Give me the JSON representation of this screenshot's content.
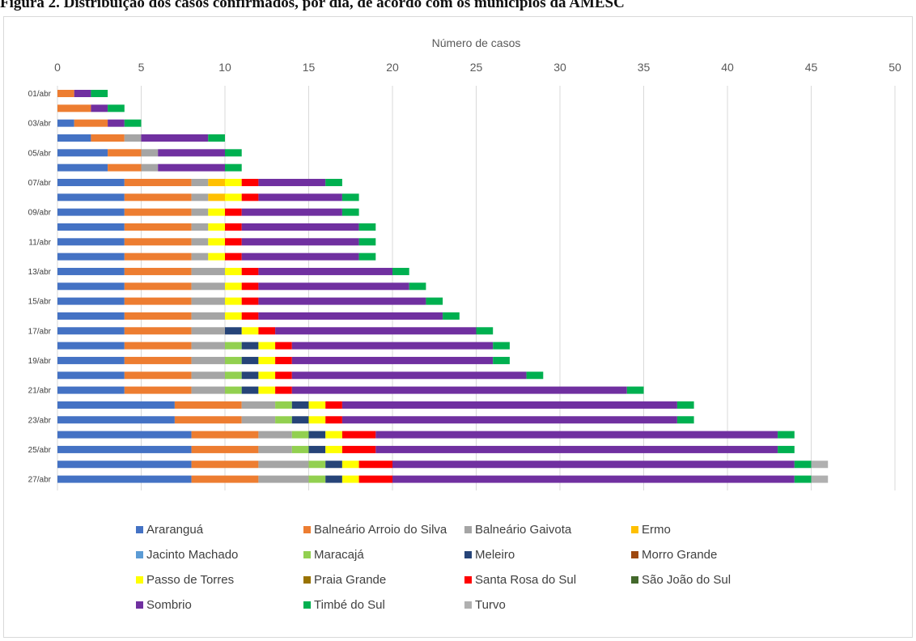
{
  "figure_title": "Figura 2. Distribuição dos casos confirmados, por dia, de acordo com os municípios da AMESC",
  "chart_data": {
    "type": "bar",
    "orientation": "horizontal",
    "stacked": true,
    "title": "",
    "xlabel": "Número de casos",
    "ylabel": "",
    "xlim": [
      0,
      50
    ],
    "x_ticks": [
      0,
      5,
      10,
      15,
      20,
      25,
      30,
      35,
      40,
      45,
      50
    ],
    "x_axis_position": "top",
    "grid": true,
    "legend_position": "bottom",
    "categories": [
      "01/abr",
      "02/abr",
      "03/abr",
      "04/abr",
      "05/abr",
      "06/abr",
      "07/abr",
      "08/abr",
      "09/abr",
      "10/abr",
      "11/abr",
      "12/abr",
      "13/abr",
      "14/abr",
      "15/abr",
      "16/abr",
      "17/abr",
      "18/abr",
      "19/abr",
      "20/abr",
      "21/abr",
      "22/abr",
      "23/abr",
      "24/abr",
      "25/abr",
      "26/abr",
      "27/abr"
    ],
    "category_labels": [
      "01/abr",
      "",
      "03/abr",
      "",
      "05/abr",
      "",
      "07/abr",
      "",
      "09/abr",
      "",
      "11/abr",
      "",
      "13/abr",
      "",
      "15/abr",
      "",
      "17/abr",
      "",
      "19/abr",
      "",
      "21/abr",
      "",
      "23/abr",
      "",
      "25/abr",
      "",
      "27/abr"
    ],
    "series": [
      {
        "name": "Araranguá",
        "color": "#4472c4",
        "values": [
          0,
          0,
          1,
          2,
          3,
          3,
          4,
          4,
          4,
          4,
          4,
          4,
          4,
          4,
          4,
          4,
          4,
          4,
          4,
          4,
          4,
          7,
          7,
          8,
          8,
          8,
          8
        ]
      },
      {
        "name": "Balneário Arroio do Silva",
        "color": "#ed7d31",
        "values": [
          1,
          2,
          2,
          2,
          2,
          2,
          4,
          4,
          4,
          4,
          4,
          4,
          4,
          4,
          4,
          4,
          4,
          4,
          4,
          4,
          4,
          4,
          4,
          4,
          4,
          4,
          4
        ]
      },
      {
        "name": "Balneário Gaivota",
        "color": "#a5a5a5",
        "values": [
          0,
          0,
          0,
          1,
          1,
          1,
          1,
          1,
          1,
          1,
          1,
          1,
          2,
          2,
          2,
          2,
          2,
          2,
          2,
          2,
          2,
          2,
          2,
          2,
          2,
          3,
          3
        ]
      },
      {
        "name": "Ermo",
        "color": "#ffc000",
        "values": [
          0,
          0,
          0,
          0,
          0,
          0,
          1,
          1,
          0,
          0,
          0,
          0,
          0,
          0,
          0,
          0,
          0,
          0,
          0,
          0,
          0,
          0,
          0,
          0,
          0,
          0,
          0
        ]
      },
      {
        "name": "Jacinto Machado",
        "color": "#5b9bd5",
        "values": [
          0,
          0,
          0,
          0,
          0,
          0,
          0,
          0,
          0,
          0,
          0,
          0,
          0,
          0,
          0,
          0,
          0,
          0,
          0,
          0,
          0,
          0,
          0,
          0,
          0,
          0,
          0
        ]
      },
      {
        "name": "Maracajá",
        "color": "#92d050",
        "values": [
          0,
          0,
          0,
          0,
          0,
          0,
          0,
          0,
          0,
          0,
          0,
          0,
          0,
          0,
          0,
          0,
          0,
          1,
          1,
          1,
          1,
          1,
          1,
          1,
          1,
          1,
          1
        ]
      },
      {
        "name": "Meleiro",
        "color": "#264478",
        "values": [
          0,
          0,
          0,
          0,
          0,
          0,
          0,
          0,
          0,
          0,
          0,
          0,
          0,
          0,
          0,
          0,
          1,
          1,
          1,
          1,
          1,
          1,
          1,
          1,
          1,
          1,
          1
        ]
      },
      {
        "name": "Morro Grande",
        "color": "#9e480e",
        "values": [
          0,
          0,
          0,
          0,
          0,
          0,
          0,
          0,
          0,
          0,
          0,
          0,
          0,
          0,
          0,
          0,
          0,
          0,
          0,
          0,
          0,
          0,
          0,
          0,
          0,
          0,
          0
        ]
      },
      {
        "name": "Passo de Torres",
        "color": "#ffff00",
        "values": [
          0,
          0,
          0,
          0,
          0,
          0,
          1,
          1,
          1,
          1,
          1,
          1,
          1,
          1,
          1,
          1,
          1,
          1,
          1,
          1,
          1,
          1,
          1,
          1,
          1,
          1,
          1
        ]
      },
      {
        "name": "Praia Grande",
        "color": "#997300",
        "values": [
          0,
          0,
          0,
          0,
          0,
          0,
          0,
          0,
          0,
          0,
          0,
          0,
          0,
          0,
          0,
          0,
          0,
          0,
          0,
          0,
          0,
          0,
          0,
          0,
          0,
          0,
          0
        ]
      },
      {
        "name": "Santa Rosa do Sul",
        "color": "#ff0000",
        "values": [
          0,
          0,
          0,
          0,
          0,
          0,
          1,
          1,
          1,
          1,
          1,
          1,
          1,
          1,
          1,
          1,
          1,
          1,
          1,
          1,
          1,
          1,
          1,
          2,
          2,
          2,
          2
        ]
      },
      {
        "name": "São João do Sul",
        "color": "#43682b",
        "values": [
          0,
          0,
          0,
          0,
          0,
          0,
          0,
          0,
          0,
          0,
          0,
          0,
          0,
          0,
          0,
          0,
          0,
          0,
          0,
          0,
          0,
          0,
          0,
          0,
          0,
          0,
          0
        ]
      },
      {
        "name": "Sombrio",
        "color": "#7030a0",
        "values": [
          1,
          1,
          1,
          4,
          4,
          4,
          4,
          5,
          6,
          7,
          7,
          7,
          8,
          9,
          10,
          11,
          12,
          12,
          12,
          14,
          20,
          20,
          20,
          24,
          24,
          24,
          24
        ]
      },
      {
        "name": "Timbé do Sul",
        "color": "#00b050",
        "values": [
          1,
          1,
          1,
          1,
          1,
          1,
          1,
          1,
          1,
          1,
          1,
          1,
          1,
          1,
          1,
          1,
          1,
          1,
          1,
          1,
          1,
          1,
          1,
          1,
          1,
          1,
          1
        ]
      },
      {
        "name": "Turvo",
        "color": "#b0b0b0",
        "values": [
          0,
          0,
          0,
          0,
          0,
          0,
          0,
          0,
          0,
          0,
          0,
          0,
          0,
          0,
          0,
          0,
          0,
          0,
          0,
          0,
          0,
          0,
          0,
          0,
          0,
          1,
          1
        ]
      }
    ]
  }
}
